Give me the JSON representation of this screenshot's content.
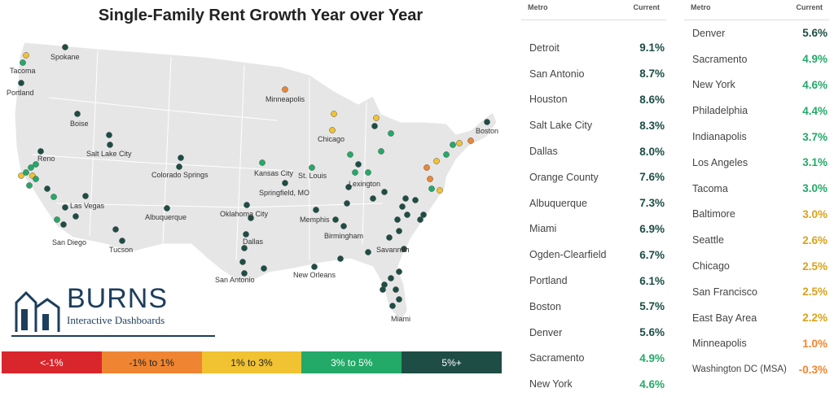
{
  "title": "Single-Family Rent Growth Year over Year",
  "colors": {
    "neg": "#d9262c",
    "low": "#ef8532",
    "mid": "#f1c232",
    "high": "#23a968",
    "top": "#1d4d45",
    "land": "#e6e6e6"
  },
  "logo": {
    "name": "BURNS",
    "subtitle": "Interactive Dashboards"
  },
  "legend": [
    {
      "label": "<-1%",
      "color": "#d9262c"
    },
    {
      "label": "-1% to 1%",
      "color": "#ef8532"
    },
    {
      "label": "1% to 3%",
      "color": "#f1c232"
    },
    {
      "label": "3% to 5%",
      "color": "#23a968"
    },
    {
      "label": "5%+",
      "color": "#1d4d45"
    }
  ],
  "table": {
    "headers": {
      "metro": "Metro",
      "current": "Current"
    },
    "left": [
      {
        "metro": "Detroit",
        "value": "9.1%",
        "color": "#1d4d45"
      },
      {
        "metro": "San Antonio",
        "value": "8.7%",
        "color": "#1d4d45"
      },
      {
        "metro": "Houston",
        "value": "8.6%",
        "color": "#1d4d45"
      },
      {
        "metro": "Salt Lake City",
        "value": "8.3%",
        "color": "#1d4d45"
      },
      {
        "metro": "Dallas",
        "value": "8.0%",
        "color": "#1d4d45"
      },
      {
        "metro": "Orange County",
        "value": "7.6%",
        "color": "#1d4d45"
      },
      {
        "metro": "Albuquerque",
        "value": "7.3%",
        "color": "#1d4d45"
      },
      {
        "metro": "Miami",
        "value": "6.9%",
        "color": "#1d4d45"
      },
      {
        "metro": "Ogden-Clearfield",
        "value": "6.7%",
        "color": "#1d4d45"
      },
      {
        "metro": "Portland",
        "value": "6.1%",
        "color": "#1d4d45"
      },
      {
        "metro": "Boston",
        "value": "5.7%",
        "color": "#1d4d45"
      },
      {
        "metro": "Denver",
        "value": "5.6%",
        "color": "#1d4d45"
      },
      {
        "metro": "Sacramento",
        "value": "4.9%",
        "color": "#23a968"
      },
      {
        "metro": "New York",
        "value": "4.6%",
        "color": "#23a968"
      }
    ],
    "right": [
      {
        "metro": "Denver",
        "value": "5.6%",
        "color": "#1d4d45"
      },
      {
        "metro": "Sacramento",
        "value": "4.9%",
        "color": "#23a968"
      },
      {
        "metro": "New York",
        "value": "4.6%",
        "color": "#23a968"
      },
      {
        "metro": "Philadelphia",
        "value": "4.4%",
        "color": "#23a968"
      },
      {
        "metro": "Indianapolis",
        "value": "3.7%",
        "color": "#23a968"
      },
      {
        "metro": "Los Angeles",
        "value": "3.1%",
        "color": "#23a968"
      },
      {
        "metro": "Tacoma",
        "value": "3.0%",
        "color": "#23a968"
      },
      {
        "metro": "Baltimore",
        "value": "3.0%",
        "color": "#d9a21b"
      },
      {
        "metro": "Seattle",
        "value": "2.6%",
        "color": "#d9a21b"
      },
      {
        "metro": "Chicago",
        "value": "2.5%",
        "color": "#d9a21b"
      },
      {
        "metro": "San Francisco",
        "value": "2.5%",
        "color": "#d9a21b"
      },
      {
        "metro": "East Bay Area",
        "value": "2.2%",
        "color": "#d9a21b"
      },
      {
        "metro": "Minneapolis",
        "value": "1.0%",
        "color": "#ef8532"
      },
      {
        "metro": "Washington DC (MSA)",
        "value": "-0.3%",
        "color": "#ef8532"
      }
    ]
  },
  "chart_data": {
    "type": "scatter",
    "title": "Single-Family Rent Growth Year over Year",
    "map_labels": [
      "Spokane",
      "Tacoma",
      "Portland",
      "Boise",
      "Reno",
      "Salt Lake City",
      "Colorado Springs",
      "Minneapolis",
      "Chicago",
      "Boston",
      "Kansas City",
      "St. Louis",
      "Springfield, MO",
      "Lexington",
      "Las Vegas",
      "Albuquerque",
      "Oklahoma City",
      "Memphis",
      "San Diego",
      "Tucson",
      "Dallas",
      "Birmingham",
      "Savannah",
      "San Antonio",
      "New Orleans",
      "Miami"
    ],
    "series": [
      {
        "name": "<-1%",
        "color": "#d9262c",
        "values": []
      },
      {
        "name": "-1% to 1%",
        "color": "#ef8532"
      },
      {
        "name": "1% to 3%",
        "color": "#f1c232"
      },
      {
        "name": "3% to 5%",
        "color": "#23a968"
      },
      {
        "name": "5%+",
        "color": "#1d4d45"
      }
    ]
  }
}
